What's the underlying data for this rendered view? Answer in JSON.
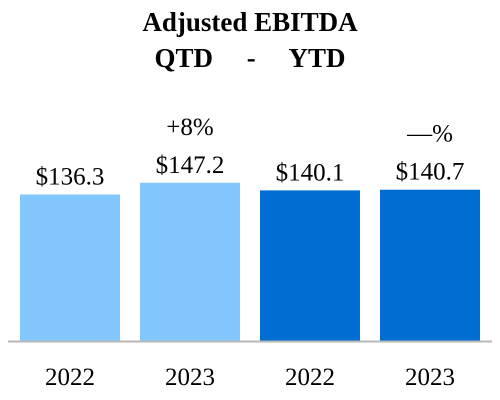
{
  "chart_data": {
    "type": "bar",
    "title": "Adjusted EBITDA",
    "subtitle": "QTD     -     YTD",
    "categories": [
      "2022",
      "2023",
      "2022",
      "2023"
    ],
    "values": [
      136.3,
      147.2,
      140.1,
      140.7
    ],
    "value_labels": [
      "$136.3",
      "$147.2",
      "$140.1",
      "$140.7"
    ],
    "annotations": [
      {
        "category_index": 1,
        "text": "+8%"
      },
      {
        "category_index": 3,
        "text": "—%"
      }
    ],
    "groups": [
      {
        "name": "QTD",
        "indices": [
          0,
          1
        ],
        "color": "#82c8ff"
      },
      {
        "name": "YTD",
        "indices": [
          2,
          3
        ],
        "color": "#006dd2"
      }
    ],
    "axis_color": "#b8b8b8",
    "grid": false,
    "legend": "none"
  }
}
